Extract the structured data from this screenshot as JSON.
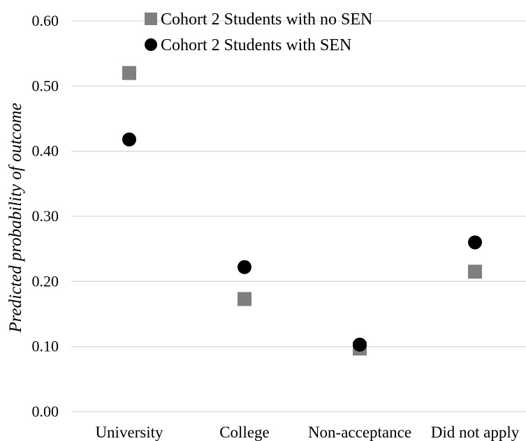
{
  "chart_data": {
    "type": "scatter",
    "title": "",
    "xlabel": "",
    "ylabel": "Predicted probability of outcome",
    "categories": [
      "University",
      "College",
      "Non-acceptance",
      "Did not apply"
    ],
    "ylim": [
      0,
      0.6
    ],
    "yticks": [
      "0.00",
      "0.10",
      "0.20",
      "0.30",
      "0.40",
      "0.50",
      "0.60"
    ],
    "grid": true,
    "legend_position": "top-center",
    "series": [
      {
        "name": "Cohort 2 Students with no SEN",
        "marker": "square",
        "color": "#7f7f7f",
        "values": [
          0.52,
          0.173,
          0.097,
          0.215
        ]
      },
      {
        "name": "Cohort 2 Students with SEN",
        "marker": "circle",
        "color": "#000000",
        "values": [
          0.418,
          0.222,
          0.103,
          0.26
        ]
      }
    ]
  }
}
